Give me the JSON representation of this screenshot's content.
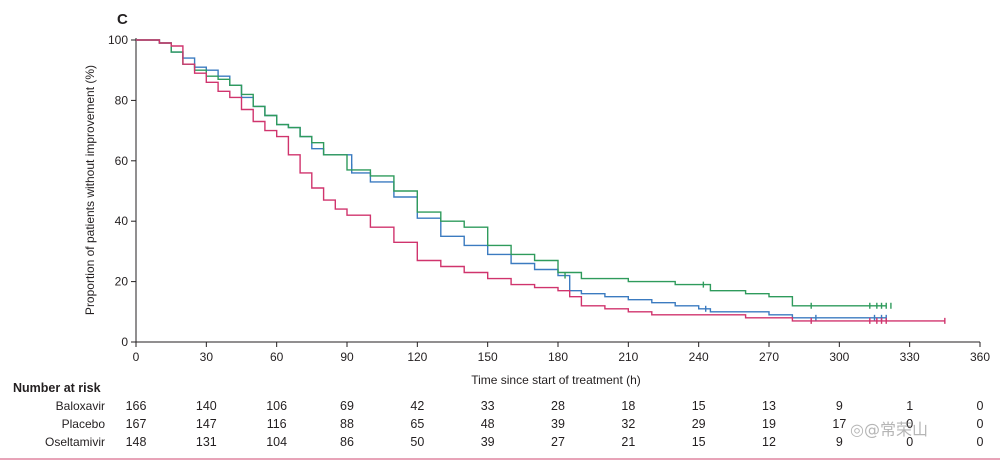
{
  "panel_label": "C",
  "watermark": "◎@常荣山",
  "chart_data": {
    "type": "line",
    "title": "",
    "xlabel": "Time since start of treatment (h)",
    "ylabel": "Proportion of patients without improvement (%)",
    "xlim": [
      0,
      360
    ],
    "ylim": [
      0,
      100
    ],
    "xticks": [
      0,
      30,
      60,
      90,
      120,
      150,
      180,
      210,
      240,
      270,
      300,
      330,
      360
    ],
    "yticks": [
      0,
      20,
      40,
      60,
      80,
      100
    ],
    "series": [
      {
        "name": "Baloxavir",
        "color": "#3b7bc0",
        "points": [
          [
            0,
            100
          ],
          [
            5,
            100
          ],
          [
            10,
            99
          ],
          [
            15,
            96
          ],
          [
            20,
            94
          ],
          [
            25,
            91
          ],
          [
            30,
            90
          ],
          [
            35,
            88
          ],
          [
            40,
            85
          ],
          [
            45,
            81
          ],
          [
            50,
            78
          ],
          [
            55,
            75
          ],
          [
            60,
            72
          ],
          [
            65,
            71
          ],
          [
            70,
            68
          ],
          [
            75,
            64
          ],
          [
            80,
            62
          ],
          [
            85,
            62
          ],
          [
            90,
            62
          ],
          [
            92,
            56
          ],
          [
            100,
            53
          ],
          [
            110,
            48
          ],
          [
            120,
            41
          ],
          [
            130,
            35
          ],
          [
            140,
            32
          ],
          [
            150,
            29
          ],
          [
            160,
            26
          ],
          [
            170,
            24
          ],
          [
            180,
            22
          ],
          [
            185,
            17
          ],
          [
            190,
            16
          ],
          [
            200,
            15
          ],
          [
            210,
            14
          ],
          [
            220,
            13
          ],
          [
            230,
            12
          ],
          [
            240,
            11
          ],
          [
            245,
            10
          ],
          [
            270,
            9
          ],
          [
            280,
            8
          ],
          [
            320,
            8
          ]
        ],
        "censor": [
          [
            92,
            58
          ],
          [
            243,
            11
          ],
          [
            290,
            8
          ],
          [
            315,
            8
          ],
          [
            318,
            8
          ],
          [
            320,
            8
          ]
        ]
      },
      {
        "name": "Placebo",
        "color": "#2f9b5c",
        "points": [
          [
            0,
            100
          ],
          [
            5,
            100
          ],
          [
            10,
            99
          ],
          [
            15,
            96
          ],
          [
            20,
            92
          ],
          [
            25,
            90
          ],
          [
            30,
            88
          ],
          [
            35,
            87
          ],
          [
            40,
            85
          ],
          [
            45,
            82
          ],
          [
            50,
            78
          ],
          [
            55,
            75
          ],
          [
            60,
            72
          ],
          [
            65,
            71
          ],
          [
            70,
            68
          ],
          [
            75,
            66
          ],
          [
            80,
            62
          ],
          [
            90,
            57
          ],
          [
            100,
            55
          ],
          [
            110,
            50
          ],
          [
            120,
            43
          ],
          [
            130,
            40
          ],
          [
            140,
            38
          ],
          [
            150,
            32
          ],
          [
            160,
            29
          ],
          [
            170,
            27
          ],
          [
            180,
            23
          ],
          [
            190,
            21
          ],
          [
            200,
            21
          ],
          [
            210,
            20
          ],
          [
            220,
            20
          ],
          [
            230,
            19
          ],
          [
            240,
            19
          ],
          [
            245,
            17
          ],
          [
            260,
            16
          ],
          [
            270,
            15
          ],
          [
            280,
            12
          ],
          [
            300,
            12
          ],
          [
            320,
            12
          ]
        ],
        "censor": [
          [
            183,
            22
          ],
          [
            242,
            19
          ],
          [
            288,
            12
          ],
          [
            313,
            12
          ],
          [
            316,
            12
          ],
          [
            318,
            12
          ],
          [
            320,
            12
          ],
          [
            322,
            12
          ]
        ]
      },
      {
        "name": "Oseltamivir",
        "color": "#d0346d",
        "points": [
          [
            0,
            100
          ],
          [
            5,
            100
          ],
          [
            10,
            99
          ],
          [
            15,
            98
          ],
          [
            20,
            92
          ],
          [
            25,
            89
          ],
          [
            30,
            86
          ],
          [
            35,
            83
          ],
          [
            40,
            81
          ],
          [
            45,
            77
          ],
          [
            50,
            73
          ],
          [
            55,
            70
          ],
          [
            60,
            68
          ],
          [
            65,
            62
          ],
          [
            70,
            56
          ],
          [
            75,
            51
          ],
          [
            80,
            47
          ],
          [
            85,
            44
          ],
          [
            90,
            42
          ],
          [
            100,
            38
          ],
          [
            110,
            33
          ],
          [
            120,
            27
          ],
          [
            130,
            25
          ],
          [
            140,
            23
          ],
          [
            150,
            21
          ],
          [
            160,
            19
          ],
          [
            170,
            18
          ],
          [
            180,
            17
          ],
          [
            185,
            15
          ],
          [
            190,
            12
          ],
          [
            200,
            11
          ],
          [
            210,
            10
          ],
          [
            220,
            9
          ],
          [
            230,
            9
          ],
          [
            240,
            9
          ],
          [
            260,
            8
          ],
          [
            275,
            8
          ],
          [
            280,
            7
          ],
          [
            300,
            7
          ],
          [
            345,
            7
          ]
        ],
        "censor": [
          [
            288,
            7
          ],
          [
            313,
            7
          ],
          [
            316,
            7
          ],
          [
            318,
            7
          ],
          [
            320,
            7
          ],
          [
            345,
            7
          ]
        ]
      }
    ],
    "risk_table": {
      "title": "Number at risk",
      "times": [
        0,
        30,
        60,
        90,
        120,
        150,
        180,
        210,
        240,
        270,
        300,
        330,
        360
      ],
      "rows": [
        {
          "name": "Baloxavir",
          "values": [
            "166",
            "140",
            "106",
            "69",
            "42",
            "33",
            "28",
            "18",
            "15",
            "13",
            "9",
            "1",
            "0"
          ]
        },
        {
          "name": "Placebo",
          "values": [
            "167",
            "147",
            "116",
            "88",
            "65",
            "48",
            "39",
            "32",
            "29",
            "19",
            "17",
            "0",
            "0"
          ]
        },
        {
          "name": "Oseltamivir",
          "values": [
            "148",
            "131",
            "104",
            "86",
            "50",
            "39",
            "27",
            "21",
            "15",
            "12",
            "9",
            "0",
            "0"
          ]
        }
      ]
    }
  }
}
